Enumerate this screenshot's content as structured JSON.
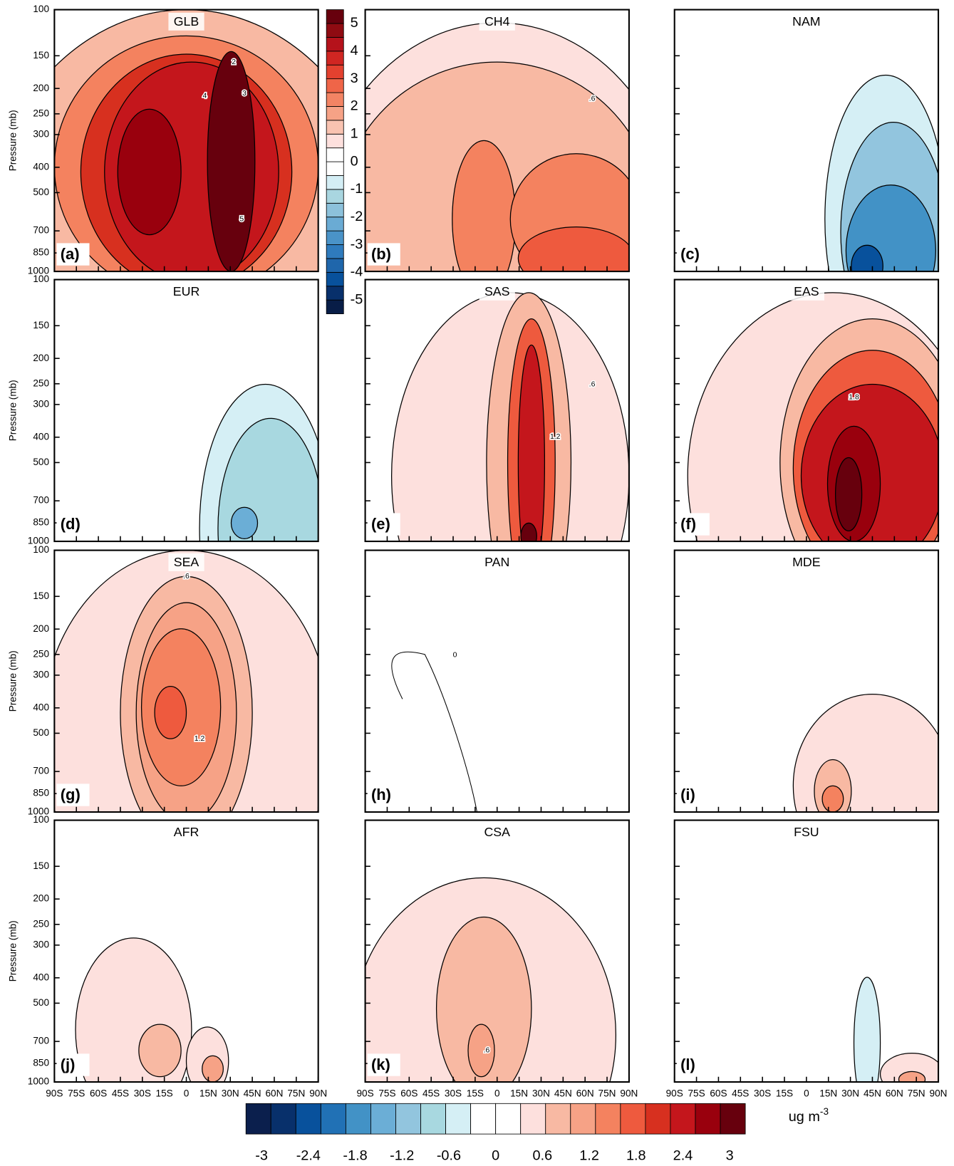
{
  "chart_data": [
    {
      "type": "contour",
      "title": "GLB",
      "panel_label": "(a)",
      "ylabel": "Pressure (mb)",
      "log_y": true,
      "ylim": [
        1000,
        100
      ],
      "xlim": [
        -90,
        90
      ],
      "yticks": [
        100,
        150,
        200,
        250,
        300,
        400,
        500,
        700,
        850,
        1000
      ],
      "contour_labels": [
        "2",
        "3",
        "4",
        "5"
      ]
    },
    {
      "type": "contour",
      "title": "CH4",
      "panel_label": "(b)",
      "log_y": true,
      "ylim": [
        1000,
        100
      ],
      "xlim": [
        -90,
        90
      ],
      "contour_labels": [
        ".6"
      ]
    },
    {
      "type": "contour",
      "title": "NAM",
      "panel_label": "(c)",
      "log_y": true,
      "ylim": [
        1000,
        100
      ],
      "xlim": [
        -90,
        90
      ]
    },
    {
      "type": "contour",
      "title": "EUR",
      "panel_label": "(d)",
      "ylabel": "Pressure (mb)",
      "log_y": true,
      "ylim": [
        1000,
        100
      ],
      "xlim": [
        -90,
        90
      ],
      "yticks": [
        100,
        150,
        200,
        250,
        300,
        400,
        500,
        700,
        850,
        1000
      ]
    },
    {
      "type": "contour",
      "title": "SAS",
      "panel_label": "(e)",
      "log_y": true,
      "ylim": [
        1000,
        100
      ],
      "xlim": [
        -90,
        90
      ],
      "contour_labels": [
        ".6",
        "1.2"
      ]
    },
    {
      "type": "contour",
      "title": "EAS",
      "panel_label": "(f)",
      "log_y": true,
      "ylim": [
        1000,
        100
      ],
      "xlim": [
        -90,
        90
      ],
      "contour_labels": [
        "1.8"
      ]
    },
    {
      "type": "contour",
      "title": "SEA",
      "panel_label": "(g)",
      "ylabel": "Pressure (mb)",
      "log_y": true,
      "ylim": [
        1000,
        100
      ],
      "xlim": [
        -90,
        90
      ],
      "yticks": [
        100,
        150,
        200,
        250,
        300,
        400,
        500,
        700,
        850,
        1000
      ],
      "contour_labels": [
        ".6",
        "1.2"
      ]
    },
    {
      "type": "contour",
      "title": "PAN",
      "panel_label": "(h)",
      "log_y": true,
      "ylim": [
        1000,
        100
      ],
      "xlim": [
        -90,
        90
      ],
      "contour_labels": [
        "0"
      ]
    },
    {
      "type": "contour",
      "title": "MDE",
      "panel_label": "(i)",
      "log_y": true,
      "ylim": [
        1000,
        100
      ],
      "xlim": [
        -90,
        90
      ]
    },
    {
      "type": "contour",
      "title": "AFR",
      "panel_label": "(j)",
      "ylabel": "Pressure (mb)",
      "log_y": true,
      "ylim": [
        1000,
        100
      ],
      "xlim": [
        -90,
        90
      ],
      "yticks": [
        100,
        150,
        200,
        250,
        300,
        400,
        500,
        700,
        850,
        1000
      ],
      "xticks": [
        {
          "value": -90,
          "label": "90S"
        },
        {
          "value": -75,
          "label": "75S"
        },
        {
          "value": -60,
          "label": "60S"
        },
        {
          "value": -45,
          "label": "45S"
        },
        {
          "value": -30,
          "label": "30S"
        },
        {
          "value": -15,
          "label": "15S"
        },
        0,
        {
          "value": 15,
          "label": "15N"
        },
        {
          "value": 30,
          "label": "30N"
        },
        {
          "value": 45,
          "label": "45N"
        },
        {
          "value": 60,
          "label": "60N"
        },
        {
          "value": 75,
          "label": "75N"
        },
        {
          "value": 90,
          "label": "90N"
        }
      ]
    },
    {
      "type": "contour",
      "title": "CSA",
      "panel_label": "(k)",
      "log_y": true,
      "ylim": [
        1000,
        100
      ],
      "xlim": [
        -90,
        90
      ],
      "contour_labels": [
        ".6"
      ],
      "xticks": [
        {
          "value": -90,
          "label": "90S"
        },
        {
          "value": -75,
          "label": "75S"
        },
        {
          "value": -60,
          "label": "60S"
        },
        {
          "value": -45,
          "label": "45S"
        },
        {
          "value": -30,
          "label": "30S"
        },
        {
          "value": -15,
          "label": "15S"
        },
        0,
        {
          "value": 15,
          "label": "15N"
        },
        {
          "value": 30,
          "label": "30N"
        },
        {
          "value": 45,
          "label": "45N"
        },
        {
          "value": 60,
          "label": "60N"
        },
        {
          "value": 75,
          "label": "75N"
        },
        {
          "value": 90,
          "label": "90N"
        }
      ]
    },
    {
      "type": "contour",
      "title": "FSU",
      "panel_label": "(l)",
      "log_y": true,
      "ylim": [
        1000,
        100
      ],
      "xlim": [
        -90,
        90
      ],
      "xticks": [
        {
          "value": -90,
          "label": "90S"
        },
        {
          "value": -75,
          "label": "75S"
        },
        {
          "value": -60,
          "label": "60S"
        },
        {
          "value": -45,
          "label": "45S"
        },
        {
          "value": -30,
          "label": "30S"
        },
        {
          "value": -15,
          "label": "15S"
        },
        0,
        {
          "value": 15,
          "label": "15N"
        },
        {
          "value": 30,
          "label": "30N"
        },
        {
          "value": 45,
          "label": "45N"
        },
        {
          "value": 60,
          "label": "60N"
        },
        {
          "value": 75,
          "label": "75N"
        },
        {
          "value": 90,
          "label": "90N"
        }
      ]
    },
    {
      "type": "colorbar",
      "orientation": "vertical",
      "clim": [
        -5.5,
        5.5
      ],
      "ticks": [
        -5,
        -4,
        -3,
        -2,
        -1,
        0,
        1,
        2,
        3,
        4,
        5
      ],
      "colors": [
        "#081d47",
        "#08306b",
        "#08519c",
        "#1f66ab",
        "#2f7bbd",
        "#4a93c8",
        "#6aabd4",
        "#8cc1db",
        "#a9d6e0",
        "#d4eef5",
        "#ffffff",
        "#ffffff",
        "#fde0dd",
        "#f9c3b1",
        "#f6a286",
        "#f38464",
        "#ef6548",
        "#e3412f",
        "#d02622",
        "#b5121b",
        "#8f0b12",
        "#67000d"
      ]
    },
    {
      "type": "colorbar",
      "orientation": "horizontal",
      "clim": [
        -3.2,
        3.2
      ],
      "ticks": [
        -3,
        -2.4,
        -1.8,
        -1.2,
        -0.6,
        0,
        0.6,
        1.2,
        1.8,
        2.4,
        3
      ],
      "unit": "ug m",
      "unit_exponent": "-3",
      "colors": [
        "#0b1f4d",
        "#08306b",
        "#08519c",
        "#2171b5",
        "#4292c6",
        "#6baed6",
        "#92c5de",
        "#a8d8e0",
        "#d5eff5",
        "#ffffff",
        "#ffffff",
        "#fde0dd",
        "#f8b9a3",
        "#f6a286",
        "#f4825f",
        "#ee5a3e",
        "#d7301f",
        "#c4161c",
        "#99000d",
        "#67000d"
      ]
    }
  ]
}
